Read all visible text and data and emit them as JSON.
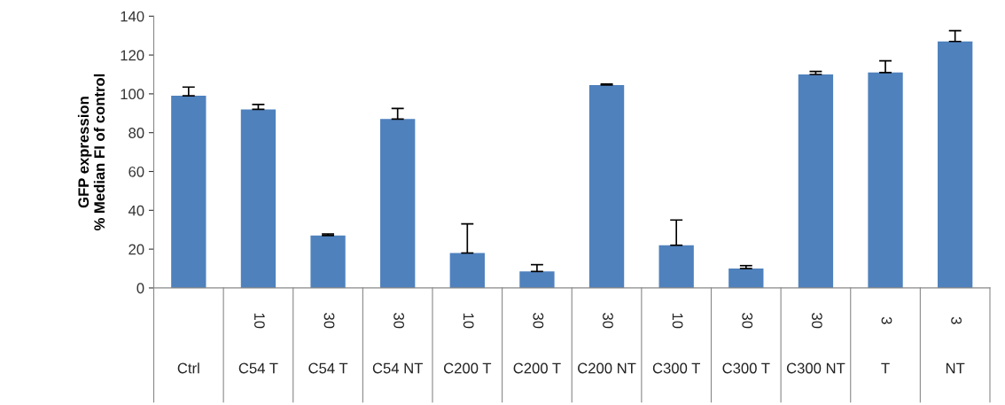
{
  "chart_data": {
    "type": "bar",
    "ylabel": "GFP expression\n% Median FI of control",
    "categories": [
      "Ctrl",
      "C54 T",
      "C54 T",
      "C54 NT",
      "C200 T",
      "C200 T",
      "C200 NT",
      "C300 T",
      "C300 T",
      "C300 NT",
      "T",
      "NT"
    ],
    "annotations": [
      "10",
      "30",
      "30",
      "10",
      "30",
      "30",
      "10",
      "30",
      "30",
      "3",
      "3"
    ],
    "values": [
      99,
      92,
      27,
      87,
      18,
      8.5,
      104.5,
      22,
      10,
      110,
      111,
      127
    ],
    "errors": [
      [
        99,
        103.5
      ],
      [
        92,
        94.5
      ],
      [
        27,
        27.8
      ],
      [
        87,
        92.5
      ],
      [
        18,
        33
      ],
      [
        8.5,
        12
      ],
      [
        104.5,
        105
      ],
      [
        22,
        35
      ],
      [
        10,
        11.5
      ],
      [
        110,
        111.5
      ],
      [
        111,
        117
      ],
      [
        127,
        132.5
      ]
    ],
    "color": "#4f81bd",
    "ylim": [
      0,
      140
    ],
    "yticks": [
      0,
      20,
      40,
      60,
      80,
      100,
      120,
      140
    ],
    "grid": false
  }
}
